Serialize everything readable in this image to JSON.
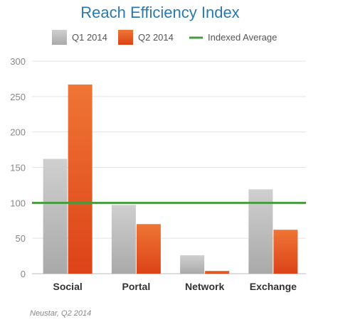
{
  "chart_data": {
    "type": "bar",
    "title": "Reach Efficiency Index",
    "categories": [
      "Social",
      "Portal",
      "Network",
      "Exchange"
    ],
    "series": [
      {
        "name": "Q1 2014",
        "values": [
          162,
          97,
          26,
          119
        ],
        "color": "#c2c2c2"
      },
      {
        "name": "Q2 2014",
        "values": [
          267,
          70,
          4,
          62
        ],
        "color": "#ee6b2b"
      }
    ],
    "reference_line": {
      "name": "Indexed Average",
      "value": 100,
      "color": "#4a9b3f"
    },
    "ylim": [
      0,
      300
    ],
    "yticks": [
      0,
      50,
      100,
      150,
      200,
      250,
      300
    ],
    "xlabel": "",
    "ylabel": "",
    "grid": true,
    "legend_position": "top",
    "source": "Neustar, Q2 2014"
  }
}
